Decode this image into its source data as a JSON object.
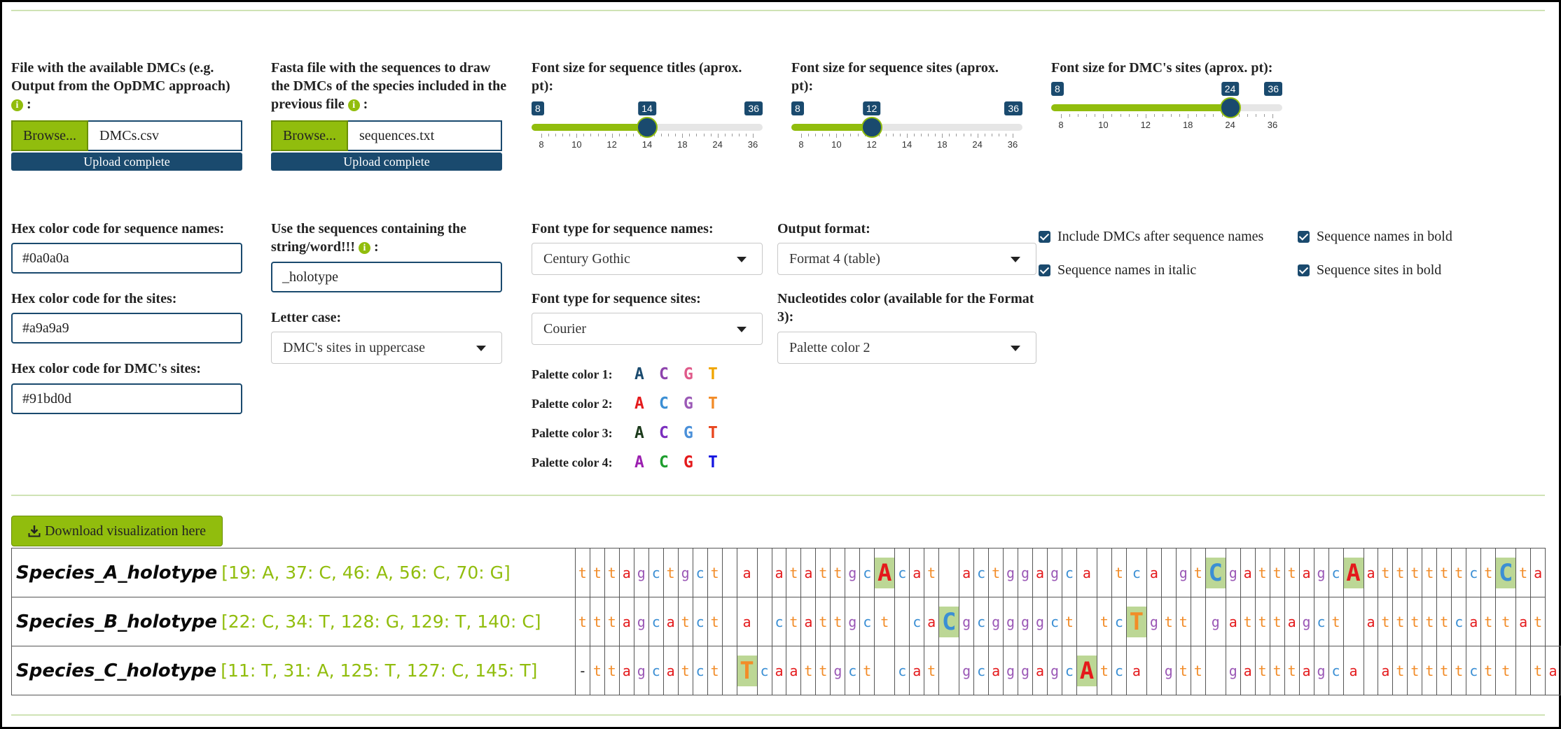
{
  "upload_dmc": {
    "label": "File with the available DMCs (e.g. Output from the OpDMC approach)",
    "info_icon": "i",
    "suffix": ":",
    "browse_label": "Browse...",
    "filename": "DMCs.csv",
    "status": "Upload complete"
  },
  "upload_fasta": {
    "label": "Fasta file with the sequences to draw the DMCs of the species included in the previous file",
    "info_icon": "i",
    "suffix": ":",
    "browse_label": "Browse...",
    "filename": "sequences.txt",
    "status": "Upload complete"
  },
  "sliders": [
    {
      "label": "Font size for sequence titles (aprox. pt):",
      "min": 8,
      "max": 36,
      "value": 14,
      "ticks": [
        "8",
        "10",
        "12",
        "14",
        "18",
        "24",
        "36"
      ]
    },
    {
      "label": "Font size for sequence sites (aprox. pt):",
      "min": 8,
      "max": 36,
      "value": 12,
      "ticks": [
        "8",
        "10",
        "12",
        "14",
        "18",
        "24",
        "36"
      ]
    },
    {
      "label": "Font size for DMC's sites (aprox. pt):",
      "min": 8,
      "max": 36,
      "value": 24,
      "ticks": [
        "8",
        "10",
        "12",
        "18",
        "24",
        "36"
      ]
    }
  ],
  "hex_names": {
    "label": "Hex color code for sequence names:",
    "value": "#0a0a0a"
  },
  "hex_sites": {
    "label": "Hex color code for the sites:",
    "value": "#a9a9a9"
  },
  "hex_dmc": {
    "label": "Hex color code for DMC's sites:",
    "value": "#91bd0d"
  },
  "string_filter": {
    "label": "Use the sequences containing the string/word!!!",
    "info_icon": "i",
    "suffix": ":",
    "value": "_holotype"
  },
  "letter_case": {
    "label": "Letter case:",
    "value": "DMC's sites in uppercase"
  },
  "font_names": {
    "label": "Font type for sequence names:",
    "value": "Century Gothic"
  },
  "font_sites": {
    "label": "Font type for sequence sites:",
    "value": "Courier"
  },
  "output_format": {
    "label": "Output format:",
    "value": "Format 4 (table)"
  },
  "nuc_color": {
    "label": "Nucleotides color (available for the Format 3):",
    "value": "Palette color 2"
  },
  "checkboxes": {
    "include_dmcs": {
      "label": "Include DMCs after sequence names",
      "checked": true
    },
    "names_bold": {
      "label": "Sequence names in bold",
      "checked": true
    },
    "names_italic": {
      "label": "Sequence names in italic",
      "checked": true
    },
    "sites_bold": {
      "label": "Sequence sites in bold",
      "checked": true
    }
  },
  "palettes": [
    {
      "label": "Palette color 1:",
      "letters": [
        "A",
        "C",
        "G",
        "T"
      ],
      "colors": [
        "#1a4a6e",
        "#8e44ad",
        "#e05a8a",
        "#f0a500"
      ]
    },
    {
      "label": "Palette color 2:",
      "letters": [
        "A",
        "C",
        "G",
        "T"
      ],
      "colors": [
        "#e41a1c",
        "#3b8fd4",
        "#9b59b6",
        "#f28c28"
      ]
    },
    {
      "label": "Palette color 3:",
      "letters": [
        "A",
        "C",
        "G",
        "T"
      ],
      "colors": [
        "#1b3a1b",
        "#7b2fbe",
        "#4a90d9",
        "#e8451e"
      ]
    },
    {
      "label": "Palette color 4:",
      "letters": [
        "A",
        "C",
        "G",
        "T"
      ],
      "colors": [
        "#9b1fb0",
        "#1e9e2e",
        "#e41a1c",
        "#1515e0"
      ]
    }
  ],
  "download_label": "Download visualization here",
  "nuc_colors": {
    "a": "#e41a1c",
    "c": "#3b8fd4",
    "g": "#9b59b6",
    "t": "#f28c28",
    "-": "#222222"
  },
  "rows": [
    {
      "name": "Species_A_holotype",
      "dmcs": "[19: A, 37: C, 46: A, 56: C, 70: G]",
      "sites": [
        "t",
        "t",
        "t",
        "a",
        "g",
        "c",
        "t",
        "g",
        "c",
        "t",
        "",
        "a",
        "",
        "a",
        "t",
        "a",
        "t",
        "t",
        "g",
        "c",
        "A",
        "c",
        "a",
        "t",
        "",
        "a",
        "c",
        "t",
        "g",
        "g",
        "a",
        "g",
        "c",
        "a",
        "",
        "t",
        "c",
        "a",
        "",
        "g",
        "t",
        "C",
        "g",
        "a",
        "t",
        "t",
        "t",
        "a",
        "g",
        "c",
        "A",
        "a",
        "t",
        "t",
        "t",
        "t",
        "t",
        "t",
        "c",
        "t",
        "C",
        "t",
        "a"
      ],
      "big": [
        20,
        41,
        50,
        60
      ]
    },
    {
      "name": "Species_B_holotype",
      "dmcs": "[22: C, 34: T, 128: G, 129: T, 140: C]",
      "sites": [
        "t",
        "t",
        "t",
        "a",
        "g",
        "c",
        "a",
        "t",
        "c",
        "t",
        "",
        "a",
        "",
        "c",
        "t",
        "a",
        "t",
        "t",
        "g",
        "c",
        "t",
        "",
        "c",
        "a",
        "C",
        "g",
        "c",
        "g",
        "g",
        "g",
        "g",
        "c",
        "t",
        "",
        "t",
        "c",
        "T",
        "g",
        "t",
        "t",
        "",
        "g",
        "a",
        "t",
        "t",
        "t",
        "a",
        "g",
        "c",
        "t",
        "",
        "a",
        "t",
        "t",
        "t",
        "t",
        "t",
        "c",
        "a",
        "t",
        "t",
        "a",
        "t"
      ],
      "big": [
        24,
        36
      ]
    },
    {
      "name": "Species_C_holotype",
      "dmcs": "[11: T, 31: A, 125: T, 127: C, 145: T]",
      "sites": [
        "-",
        "t",
        "t",
        "a",
        "g",
        "c",
        "a",
        "t",
        "c",
        "t",
        "",
        "T",
        "c",
        "a",
        "a",
        "t",
        "t",
        "g",
        "c",
        "t",
        "",
        "c",
        "a",
        "t",
        "",
        "g",
        "c",
        "a",
        "g",
        "g",
        "a",
        "g",
        "c",
        "A",
        "t",
        "c",
        "a",
        "",
        "g",
        "t",
        "t",
        "",
        "g",
        "a",
        "t",
        "t",
        "t",
        "a",
        "g",
        "c",
        "a",
        "",
        "a",
        "t",
        "t",
        "t",
        "t",
        "t",
        "c",
        "t",
        "t",
        "",
        "t",
        "a"
      ],
      "big": [
        11,
        33
      ]
    }
  ]
}
